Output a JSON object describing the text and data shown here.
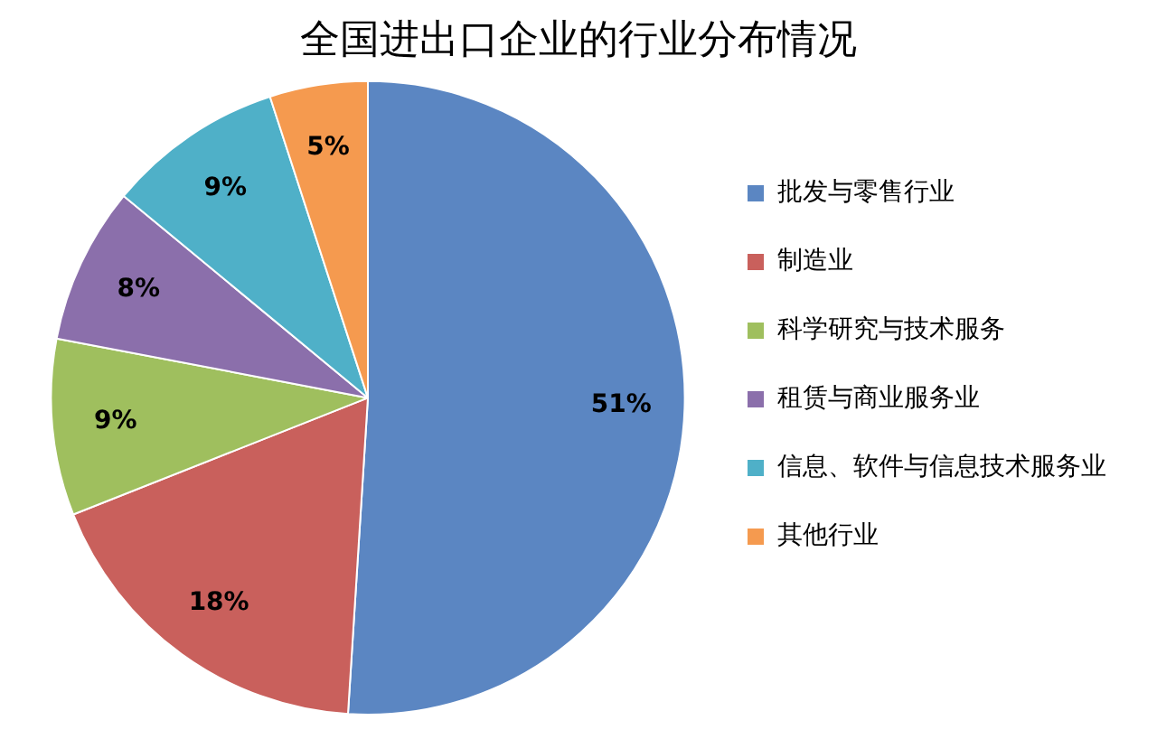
{
  "chart_data": {
    "type": "pie",
    "title": "全国进出口企业的行业分布情况",
    "categories": [
      "批发与零售行业",
      "制造业",
      "科学研究与技术服务",
      "租赁与商业服务业",
      "信息、软件与信息技术服务业",
      "其他行业"
    ],
    "values": [
      51,
      18,
      9,
      8,
      9,
      5
    ],
    "colors": [
      "#5b86c2",
      "#c9605c",
      "#9fbf5e",
      "#8b6fab",
      "#4fb0c8",
      "#f59a4f"
    ],
    "value_labels": [
      "51%",
      "18%",
      "9%",
      "8%",
      "9%",
      "5%"
    ],
    "legend": "right"
  }
}
